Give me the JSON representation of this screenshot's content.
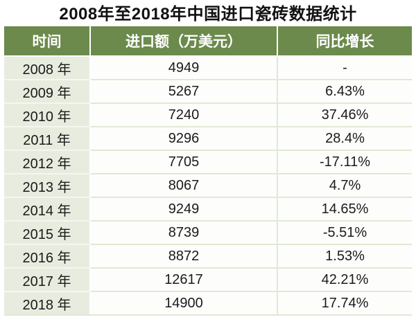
{
  "title": "2008年至2018年中国进口瓷砖数据统计",
  "table": {
    "headers": [
      "时间",
      "进口额（万美元）",
      "同比增长"
    ],
    "rows": [
      {
        "year": "2008 年",
        "import_value": "4949",
        "growth": "-"
      },
      {
        "year": "2009 年",
        "import_value": "5267",
        "growth": "6.43%"
      },
      {
        "year": "2010 年",
        "import_value": "7240",
        "growth": "37.46%"
      },
      {
        "year": "2011 年",
        "import_value": "9296",
        "growth": "28.4%"
      },
      {
        "year": "2012 年",
        "import_value": "7705",
        "growth": "-17.11%"
      },
      {
        "year": "2013 年",
        "import_value": "8067",
        "growth": "4.7%"
      },
      {
        "year": "2014 年",
        "import_value": "9249",
        "growth": "14.65%"
      },
      {
        "year": "2015 年",
        "import_value": "8739",
        "growth": "-5.51%"
      },
      {
        "year": "2016 年",
        "import_value": "8872",
        "growth": "1.53%"
      },
      {
        "year": "2017 年",
        "import_value": "12617",
        "growth": "42.21%"
      },
      {
        "year": "2018 年",
        "import_value": "14900",
        "growth": "17.74%"
      }
    ]
  },
  "colors": {
    "header_bg": "#6b8a4c",
    "header_text": "#ffffff",
    "year_column_bg": "#e7ecdf",
    "grid_line": "#dfe9d3",
    "body_text": "#1a1a1a",
    "title_text": "#111111"
  },
  "chart_data": {
    "type": "table",
    "title": "2008年至2018年中国进口瓷砖数据统计",
    "columns": [
      "时间",
      "进口额（万美元）",
      "同比增长"
    ],
    "years": [
      2008,
      2009,
      2010,
      2011,
      2012,
      2013,
      2014,
      2015,
      2016,
      2017,
      2018
    ],
    "import_value_wan_usd": [
      4949,
      5267,
      7240,
      9296,
      7705,
      8067,
      9249,
      8739,
      8872,
      12617,
      14900
    ],
    "yoy_growth_percent": [
      null,
      6.43,
      37.46,
      28.4,
      -17.11,
      4.7,
      14.65,
      -5.51,
      1.53,
      42.21,
      17.74
    ],
    "yoy_growth_labels": [
      "-",
      "6.43%",
      "37.46%",
      "28.4%",
      "-17.11%",
      "4.7%",
      "14.65%",
      "-5.51%",
      "1.53%",
      "42.21%",
      "17.74%"
    ]
  }
}
